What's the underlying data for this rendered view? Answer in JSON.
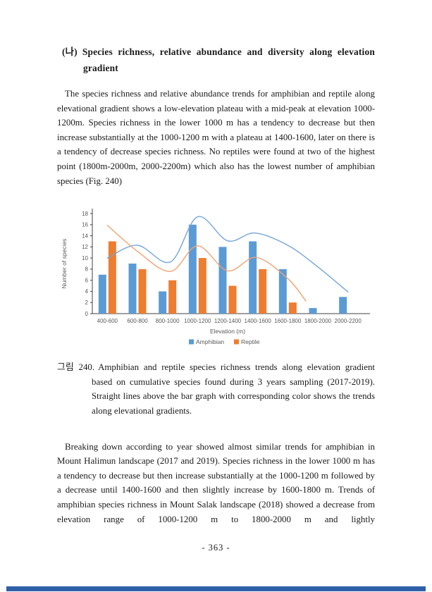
{
  "heading": {
    "marker": "(나)",
    "text": "Species richness, relative abundance and diversity along elevation gradient"
  },
  "paragraphs": [
    "The species richness and relative abundance trends for amphibian and reptile along elevational gradient shows a low-elevation plateau with a mid-peak at elevation 1000-1200m. Species richness in the lower 1000 m has a tendency to decrease but then increase substantially at the 1000-1200 m with a plateau at 1400-1600, later on there is a tendency of decrease species richness. No reptiles were found at two of the highest point (1800m-2000m, 2000-2200m) which also has the lowest number of amphibian species (Fig. 240)",
    "Breaking down according to year showed almost similar trends for amphibian in Mount Halimun landscape (2017 and 2019). Species richness in the lower 1000 m has a tendency to decrease but then increase substantially at the 1000-1200 m followed by a decrease until 1400-1600 and then slightly increase by 1600-1800 m. Trends of amphibian species richness in Mount Salak landscape (2018) showed a decrease from elevation range of 1000-1200 m to 1800-2000 m and lightly"
  ],
  "caption": {
    "label": "그림 240.",
    "text": "Amphibian and reptile species richness trends along elevation gradient based on cumulative species found during 3 years sampling (2017-2019). Straight lines above the bar graph with corresponding color shows the trends along elevational gradients."
  },
  "page": {
    "number_label": "- 363 -"
  },
  "colors": {
    "amphibian_bar": "#5B9BD5",
    "reptile_bar": "#ED7D31",
    "amphibian_trend": "#74A5D8",
    "reptile_trend": "#F2A272",
    "axis_line": "#404040",
    "axis_text": "#595959",
    "footer_bar": "#2F5FA8"
  },
  "chart_data": {
    "type": "bar",
    "title": "",
    "categories": [
      "400-600",
      "600-800",
      "800-1000",
      "1000-1200",
      "1200-1400",
      "1400-1600",
      "1600-1800",
      "1800-2000",
      "2000-2200"
    ],
    "series": [
      {
        "name": "Amphibian",
        "color": "#5B9BD5",
        "trend_color": "#74A5D8",
        "values": [
          7,
          9,
          4,
          16,
          12,
          13,
          8,
          1,
          3
        ],
        "trend_points": [
          [
            1,
            10.0
          ],
          [
            2,
            12.3
          ],
          [
            3.1,
            9.3
          ],
          [
            4,
            17.4
          ],
          [
            5,
            13.1
          ],
          [
            5.9,
            14.5
          ],
          [
            7,
            12.3
          ],
          [
            8,
            8.4
          ],
          [
            9,
            3.9
          ]
        ]
      },
      {
        "name": "Reptile",
        "color": "#ED7D31",
        "trend_color": "#F2A272",
        "values": [
          13,
          8,
          6,
          10,
          5,
          8,
          2,
          0,
          0
        ],
        "trend_points": [
          [
            1,
            15.9
          ],
          [
            2,
            11.2
          ],
          [
            3.1,
            7.6
          ],
          [
            4,
            12.2
          ],
          [
            5,
            7.7
          ],
          [
            5.95,
            10.1
          ],
          [
            7,
            6.3
          ],
          [
            7.6,
            2.3
          ]
        ]
      }
    ],
    "xlabel": "Elevation (m)",
    "ylabel": "Number of species",
    "ylim": [
      0,
      18
    ],
    "ytick_step": 2,
    "grid": false,
    "legend_position": "bottom"
  }
}
